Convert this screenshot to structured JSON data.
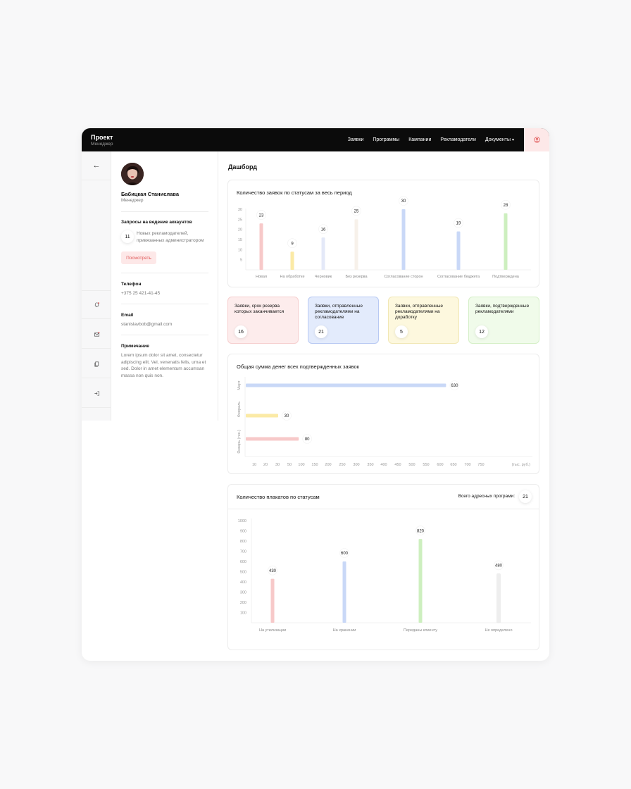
{
  "header": {
    "brand_title": "Проект",
    "brand_subtitle": "Менеджер",
    "nav": [
      "Заявки",
      "Программы",
      "Кампании",
      "Рекламодатели",
      "Документы"
    ],
    "accent": "#fde8e8"
  },
  "sidebar_icons": [
    "back-arrow-icon",
    "bell-icon",
    "mail-icon",
    "copy-icon",
    "logout-icon"
  ],
  "profile": {
    "name": "Бабицкая Станислава",
    "role": "Менеджер",
    "requests_title": "Запросы на ведение аккаунтов",
    "requests_count": "11",
    "requests_text": "Новых рекламодателей, привязанных администратором",
    "view_button": "Посмотреть",
    "phone_label": "Телефон",
    "phone": "+375 25 421-41-45",
    "email_label": "Email",
    "email": "stanislavbob@gmail.com",
    "note_label": "Примечание",
    "note": "Lorem ipsum dolor sit amet, consectetur adipiscing elit. Vel, venenatis felis, urna et sed. Dolor in amet elementum accumsan massa non quis non."
  },
  "main": {
    "title": "Дашборд",
    "stats": [
      {
        "label": "Заявки, срок резерва которых заканчивается",
        "value": "16",
        "bg": "#fdecec",
        "border": "#f6cfcf"
      },
      {
        "label": "Заявки, отправленные рекламодателями на согласование",
        "value": "21",
        "bg": "#e3ebfc",
        "border": "#b8c9f3"
      },
      {
        "label": "Заявки, отправленные рекламодателями на доработку",
        "value": "5",
        "bg": "#fdf8de",
        "border": "#f1e7b5"
      },
      {
        "label": "Заявки, подтвержденные рекламодателями",
        "value": "12",
        "bg": "#f0fbea",
        "border": "#d5efc7"
      }
    ],
    "posters_total_label": "Всего адресных програми:",
    "posters_total": "21"
  },
  "chart_data": [
    {
      "type": "bar",
      "title": "Количество заявок по статусам за весь период",
      "categories": [
        "Новая",
        "На обработке",
        "Черновик",
        "Без резерва",
        "Согласование сторон",
        "Согласование бюджета",
        "Подтверждена"
      ],
      "values": [
        23,
        9,
        16,
        25,
        30,
        19,
        28
      ],
      "colors": [
        "#f7c9c9",
        "#fbeaa6",
        "#e4e9f8",
        "#f7f1ea",
        "#c9d8f7",
        "#c9d8f7",
        "#cdefbf"
      ],
      "yticks": [
        5,
        10,
        15,
        20,
        25,
        30
      ],
      "ylim": [
        0,
        30
      ]
    },
    {
      "type": "bar",
      "orientation": "horizontal",
      "title": "Общая сумма денег всех подтвержденных заявок",
      "categories": [
        "Март",
        "Февраль",
        "Январь (тек.)"
      ],
      "values": [
        630,
        30,
        80
      ],
      "colors": [
        "#c9d8f7",
        "#fbeaa6",
        "#f7c9c9"
      ],
      "xticks": [
        "10",
        "20",
        "30",
        "50",
        "100",
        "150",
        "200",
        "250",
        "300",
        "350",
        "400",
        "450",
        "500",
        "550",
        "600",
        "650",
        "700",
        "750"
      ],
      "xunit": "(тыс. руб.)"
    },
    {
      "type": "bar",
      "title": "Количество плакатов по статусам",
      "categories": [
        "На утилизации",
        "На хранении",
        "Переданы клиенту",
        "Не определено"
      ],
      "values": [
        430,
        600,
        820,
        480
      ],
      "colors": [
        "#f7c9c9",
        "#c9d8f7",
        "#cdefbf",
        "#eeeeee"
      ],
      "yticks": [
        100,
        200,
        300,
        400,
        500,
        600,
        700,
        800,
        900,
        1000
      ],
      "ylim": [
        0,
        1000
      ]
    }
  ]
}
